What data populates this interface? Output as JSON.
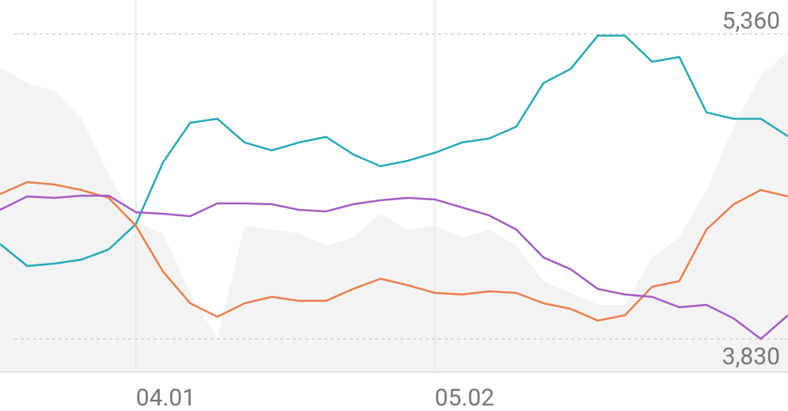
{
  "chart_data": {
    "type": "line",
    "categories": [
      null,
      null,
      null,
      null,
      null,
      "04.01",
      null,
      null,
      null,
      null,
      null,
      null,
      null,
      null,
      null,
      null,
      "05.02",
      null,
      null,
      null,
      null,
      null,
      null,
      null,
      null,
      null,
      null,
      null,
      null,
      null
    ],
    "area": {
      "color": "#f3f3f3",
      "values": [
        5193,
        5114,
        5074,
        4935,
        4657,
        4418,
        4359,
        4061,
        3830,
        4398,
        4379,
        4359,
        4299,
        4339,
        4458,
        4379,
        4398,
        4339,
        4379,
        4299,
        4120,
        4061,
        4001,
        4001,
        4239,
        4339,
        4577,
        4895,
        5153,
        5273
      ]
    },
    "series": [
      {
        "color": "#26a9b9",
        "values": [
          4307,
          4196,
          4208,
          4228,
          4279,
          4406,
          4716,
          4915,
          4935,
          4816,
          4776,
          4816,
          4844,
          4756,
          4697,
          4724,
          4764,
          4816,
          4836,
          4895,
          5114,
          5185,
          5352,
          5352,
          5221,
          5245,
          4967,
          4935,
          4935,
          4847
        ]
      },
      {
        "color": "#e8804c",
        "values": [
          4557,
          4617,
          4605,
          4577,
          4538,
          4398,
          4168,
          4009,
          3941,
          4009,
          4041,
          4021,
          4021,
          4081,
          4132,
          4100,
          4061,
          4053,
          4069,
          4061,
          4009,
          3981,
          3922,
          3949,
          4092,
          4120,
          4379,
          4506,
          4577,
          4545
        ]
      },
      {
        "color": "#a35cc4",
        "values": [
          4478,
          4545,
          4538,
          4549,
          4549,
          4466,
          4458,
          4446,
          4510,
          4510,
          4506,
          4478,
          4470,
          4506,
          4526,
          4538,
          4530,
          4490,
          4450,
          4379,
          4239,
          4180,
          4081,
          4053,
          4041,
          3989,
          4001,
          3933,
          3830,
          3949
        ]
      }
    ],
    "ylim": [
      3663,
      5531
    ],
    "yticks": [
      {
        "value": 5360,
        "label": "5,360"
      },
      {
        "value": 3830,
        "label": "3,830"
      }
    ],
    "grid": true
  }
}
